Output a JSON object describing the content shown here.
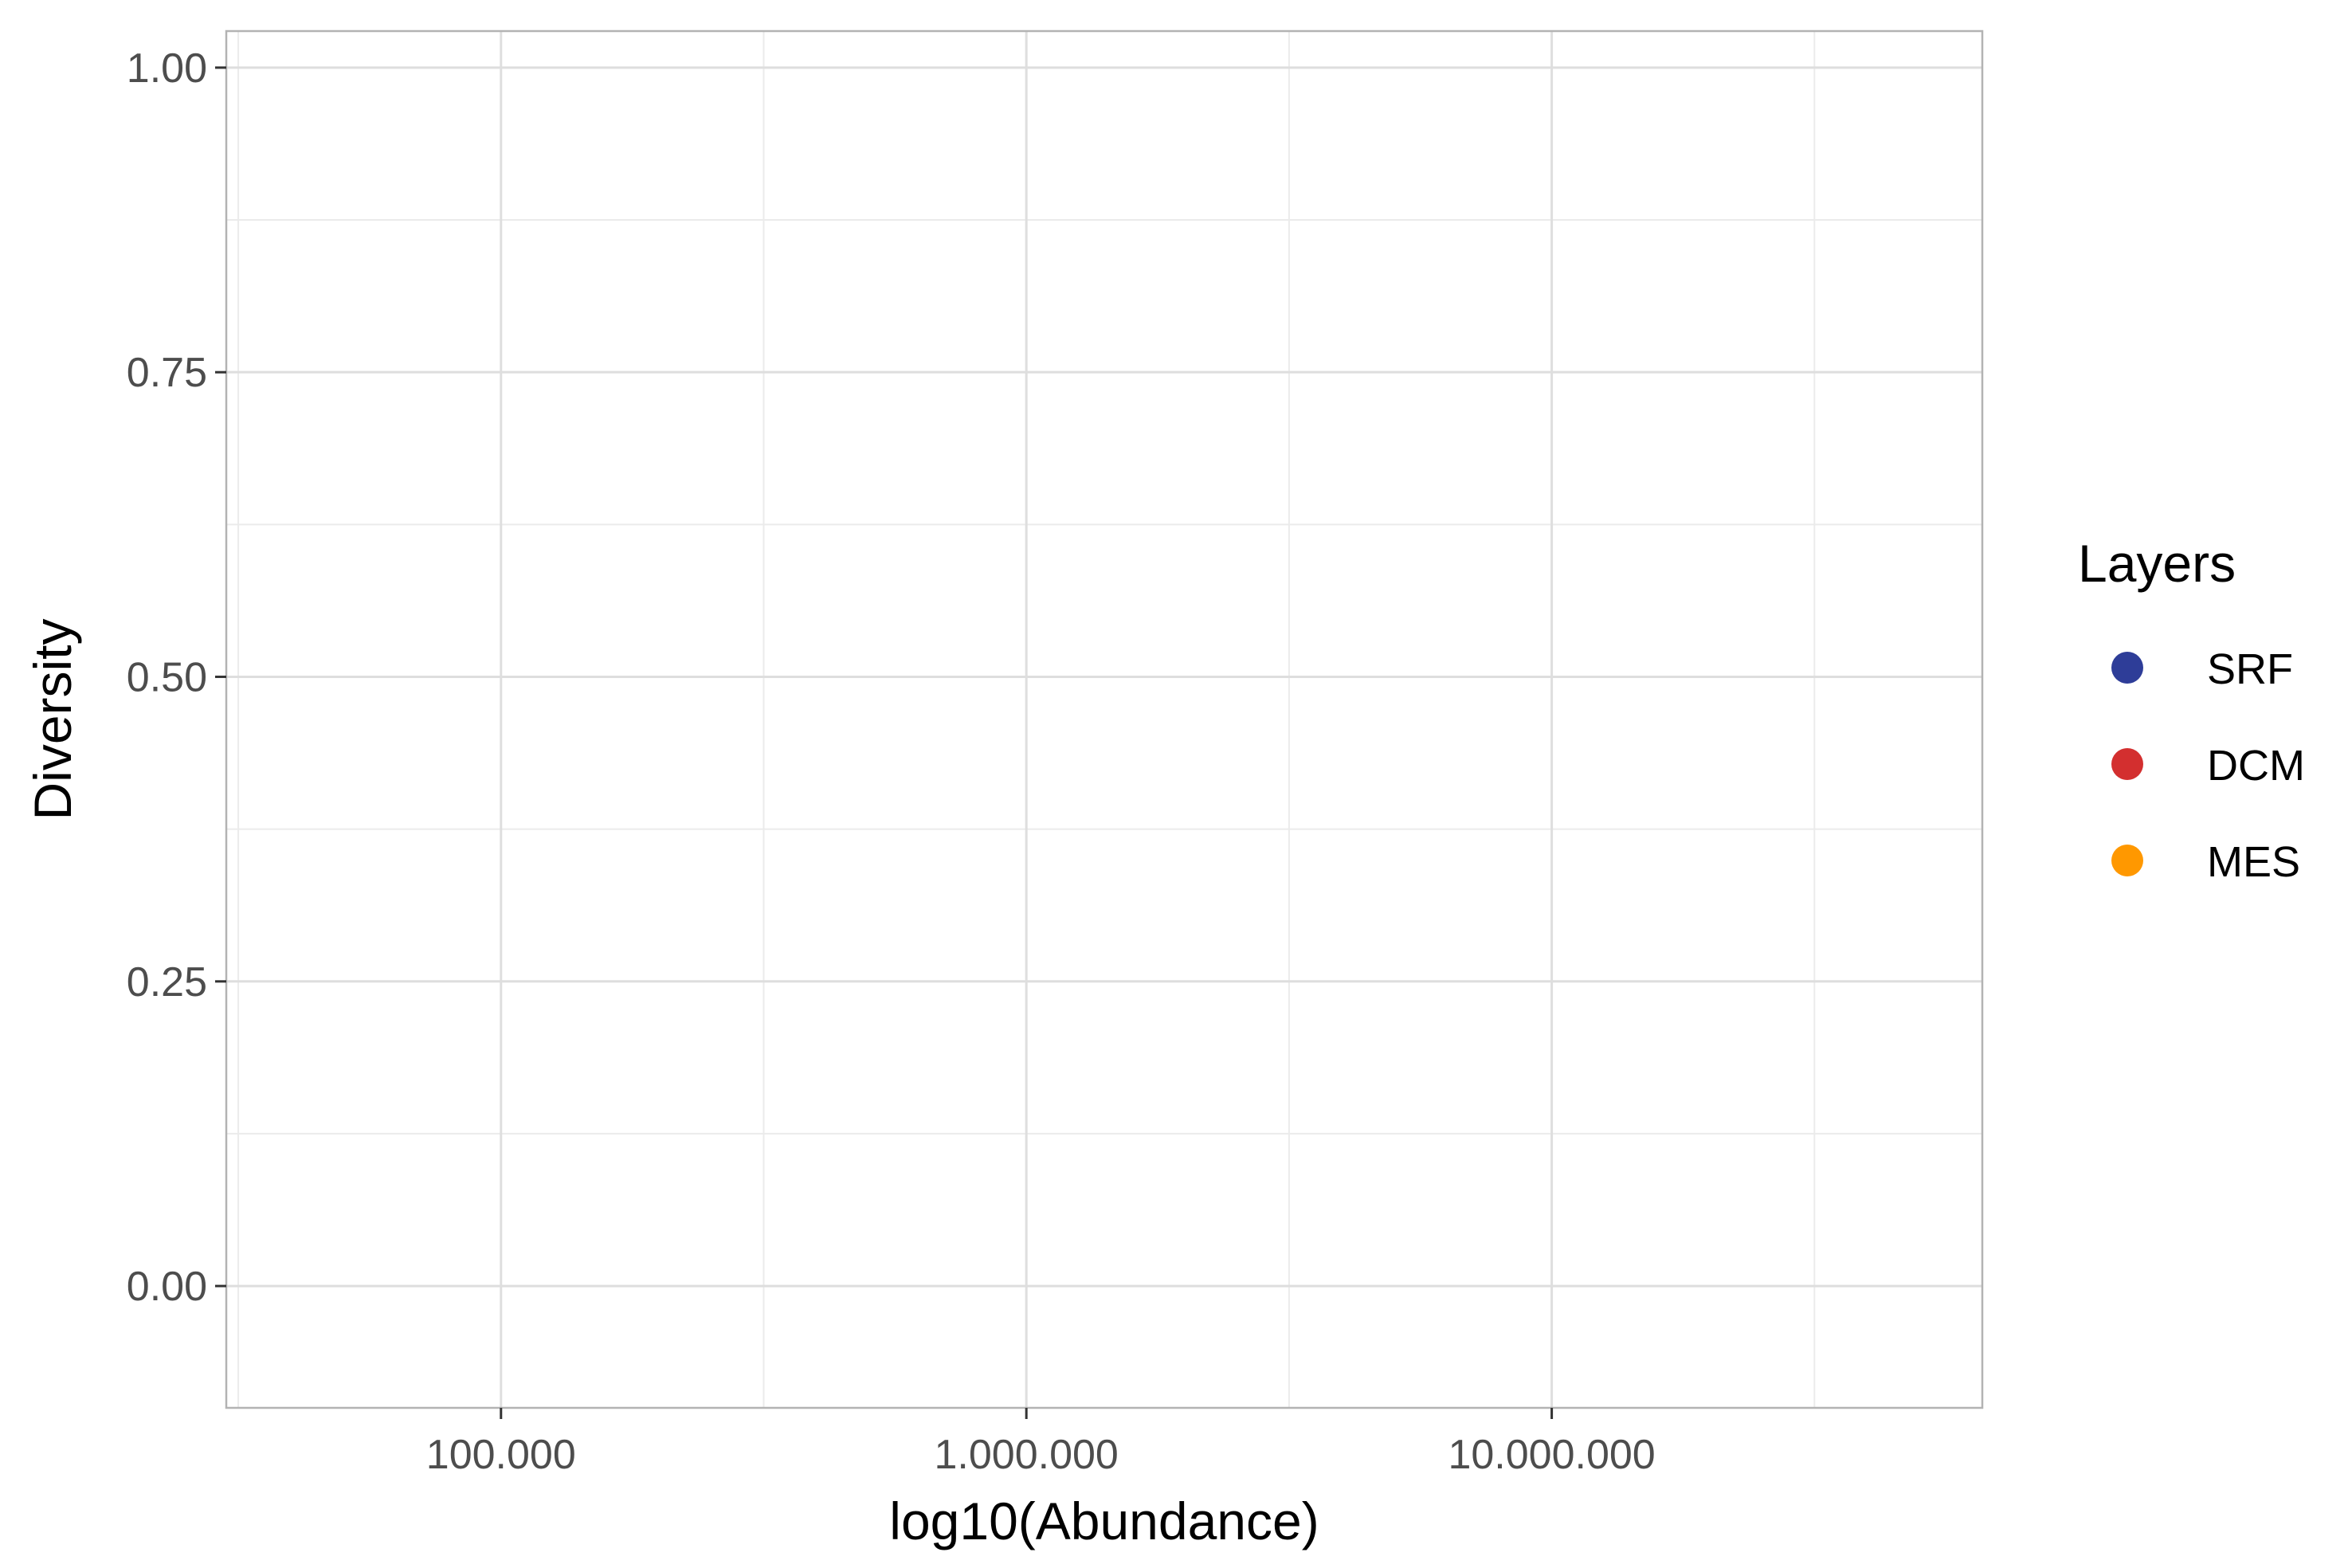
{
  "chart_data": {
    "type": "scatter",
    "title": "",
    "xlabel": "log10(Abundance)",
    "ylabel": "Diversity",
    "x_scale": "log10",
    "xlim": [
      30000,
      66000000
    ],
    "ylim": [
      -0.1,
      1.03
    ],
    "x_ticks": [
      {
        "value": 100000,
        "label": "100.000"
      },
      {
        "value": 1000000,
        "label": "1.000.000"
      },
      {
        "value": 10000000,
        "label": "10.000.000"
      }
    ],
    "y_ticks": [
      {
        "value": 0.0,
        "label": "0.00"
      },
      {
        "value": 0.25,
        "label": "0.25"
      },
      {
        "value": 0.5,
        "label": "0.50"
      },
      {
        "value": 0.75,
        "label": "0.75"
      },
      {
        "value": 1.0,
        "label": "1.00"
      }
    ],
    "grid": true,
    "legend": {
      "title": "Layers",
      "position": "right",
      "entries": [
        {
          "label": "SRF",
          "color": "#2E3D98"
        },
        {
          "label": "DCM",
          "color": "#D32F2F"
        },
        {
          "label": "MES",
          "color": "#FF9800"
        }
      ]
    },
    "series": [
      {
        "name": "SRF",
        "color": "#2E3D98",
        "points": []
      },
      {
        "name": "DCM",
        "color": "#D32F2F",
        "points": []
      },
      {
        "name": "MES",
        "color": "#FF9800",
        "points": []
      }
    ]
  }
}
